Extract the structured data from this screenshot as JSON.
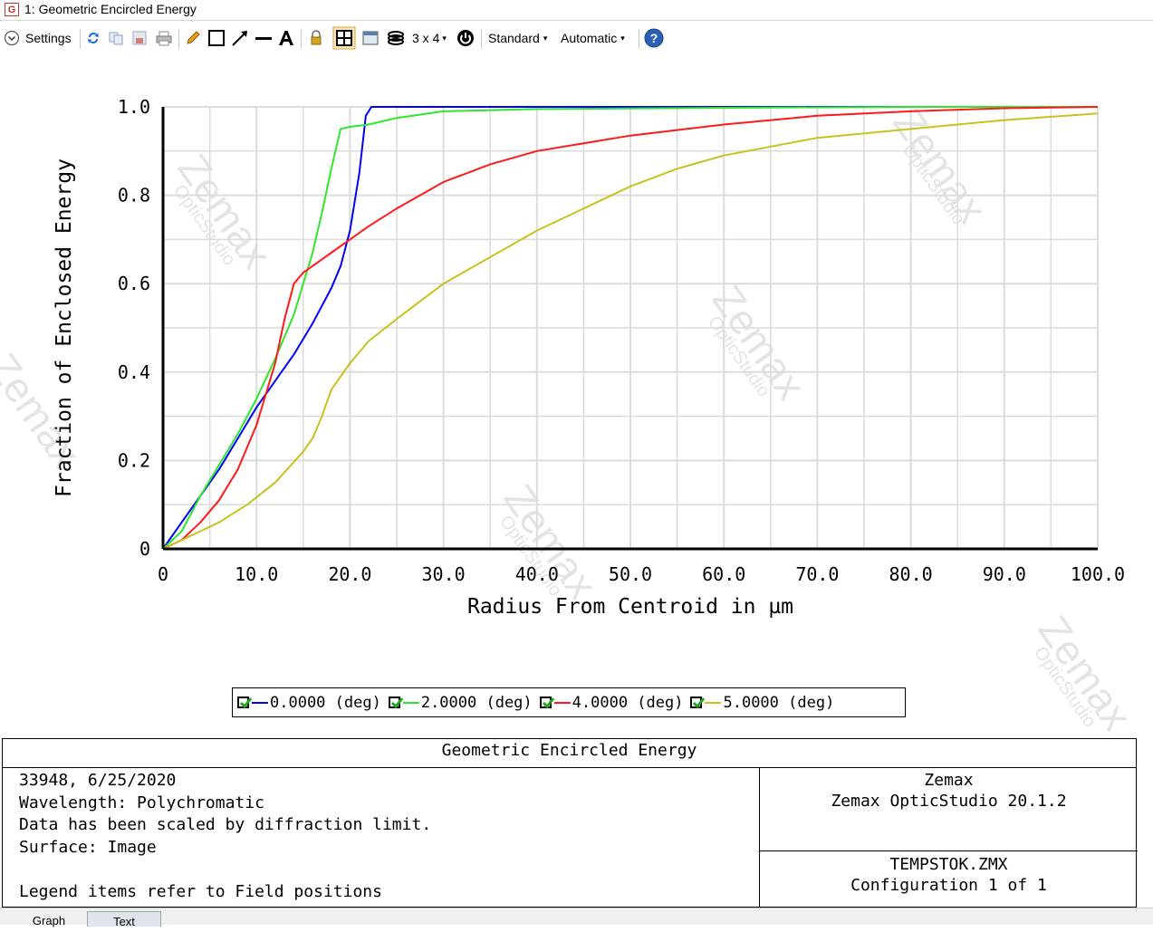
{
  "window": {
    "title": "1: Geometric Encircled Energy",
    "app_icon": "G"
  },
  "toolbar": {
    "settings_label": "Settings",
    "layout_label": "3 x 4",
    "standard_label": "Standard",
    "automatic_label": "Automatic"
  },
  "colors": {
    "series_0": "#0000ff",
    "series_1": "#2ee62e",
    "series_2": "#ff1a1a",
    "series_3": "#c8c21e",
    "grid": "#dcdcdc",
    "checkbox_green": "#1fa81f"
  },
  "chart_data": {
    "type": "line",
    "xlabel": "Radius From Centroid in µm",
    "ylabel": "Fraction of Enclosed Energy",
    "xlim": [
      0,
      100
    ],
    "ylim": [
      0,
      1.0
    ],
    "x_ticks": [
      "0",
      "10.0",
      "20.0",
      "30.0",
      "40.0",
      "50.0",
      "60.0",
      "70.0",
      "80.0",
      "90.0",
      "100.0"
    ],
    "y_ticks": [
      "0",
      "0.2",
      "0.4",
      "0.6",
      "0.8",
      "1.0"
    ],
    "grid": true,
    "legend_position": "bottom",
    "series": [
      {
        "name": "0.0000 (deg)",
        "x": [
          0,
          2,
          4,
          6,
          8,
          10,
          12,
          14,
          16,
          18,
          19,
          20,
          21,
          21.7,
          22.3,
          30,
          40,
          60,
          80,
          100
        ],
        "y": [
          0,
          0.06,
          0.12,
          0.18,
          0.25,
          0.32,
          0.38,
          0.44,
          0.51,
          0.59,
          0.64,
          0.72,
          0.85,
          0.98,
          1.0,
          1.0,
          1.0,
          1.0,
          1.0,
          1.0
        ]
      },
      {
        "name": "2.0000 (deg)",
        "x": [
          0,
          2,
          4,
          6,
          8,
          10,
          12,
          14,
          16,
          17,
          18,
          19,
          20,
          22,
          25,
          30,
          40,
          60,
          80,
          100
        ],
        "y": [
          0,
          0.04,
          0.12,
          0.19,
          0.26,
          0.34,
          0.43,
          0.53,
          0.67,
          0.76,
          0.86,
          0.95,
          0.955,
          0.96,
          0.975,
          0.99,
          0.995,
          0.998,
          1.0,
          1.0
        ]
      },
      {
        "name": "4.0000 (deg)",
        "x": [
          0,
          2,
          4,
          6,
          8,
          10,
          12,
          13,
          14,
          15,
          16,
          18,
          20,
          22,
          25,
          30,
          35,
          40,
          50,
          60,
          70,
          80,
          90,
          100
        ],
        "y": [
          0,
          0.02,
          0.06,
          0.11,
          0.18,
          0.28,
          0.42,
          0.52,
          0.6,
          0.625,
          0.64,
          0.67,
          0.7,
          0.73,
          0.77,
          0.83,
          0.87,
          0.9,
          0.935,
          0.96,
          0.98,
          0.99,
          0.997,
          1.0
        ]
      },
      {
        "name": "5.0000 (deg)",
        "x": [
          0,
          3,
          6,
          9,
          12,
          15,
          16,
          17,
          18,
          20,
          22,
          25,
          30,
          35,
          40,
          45,
          50,
          55,
          60,
          70,
          80,
          90,
          100
        ],
        "y": [
          0,
          0.03,
          0.06,
          0.1,
          0.15,
          0.22,
          0.25,
          0.3,
          0.36,
          0.42,
          0.47,
          0.52,
          0.6,
          0.66,
          0.72,
          0.77,
          0.82,
          0.86,
          0.89,
          0.93,
          0.95,
          0.97,
          0.985
        ]
      }
    ]
  },
  "legend": {
    "items": [
      {
        "label": "0.0000 (deg)"
      },
      {
        "label": "2.0000 (deg)"
      },
      {
        "label": "4.0000 (deg)"
      },
      {
        "label": "5.0000 (deg)"
      }
    ]
  },
  "info": {
    "title": "Geometric Encircled Energy",
    "left_lines": [
      "33948, 6/25/2020",
      "Wavelength: Polychromatic",
      "Data has been scaled by diffraction limit.",
      "Surface: Image",
      "",
      "Legend items refer to Field positions"
    ],
    "company": "Zemax",
    "product": "Zemax OpticStudio 20.1.2",
    "file": "TEMPSTOK.ZMX",
    "config": "Configuration 1 of 1"
  },
  "tabs": {
    "graph": "Graph",
    "text": "Text"
  },
  "watermark": {
    "brand": "Zemax",
    "product": "OpticStudio"
  }
}
